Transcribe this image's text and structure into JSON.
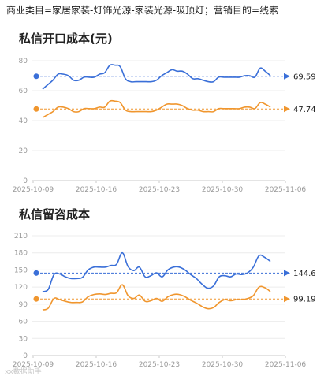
{
  "header": {
    "text": "商业类目=家居家装-灯饰光源-家装光源-吸顶灯；营销目的=线索"
  },
  "watermark": "xx数据助手",
  "chart_data": [
    {
      "type": "line",
      "title": "私信开口成本(元)",
      "ylim": [
        0,
        80
      ],
      "yticks": [
        0,
        20,
        40,
        60,
        80
      ],
      "x_tick_labels": [
        "2025-10-09",
        "2025-10-16",
        "2025-10-23",
        "2025-10-30",
        "2025-11-06"
      ],
      "grid": true,
      "series": [
        {
          "color": "#3a6fd8",
          "avg": 69.59,
          "avg_label": "69.59",
          "values": [
            61,
            64,
            67,
            71,
            71,
            70,
            67,
            67,
            69,
            69,
            69,
            71,
            72,
            77,
            77,
            76,
            68,
            66,
            66,
            66,
            66,
            66,
            67,
            70,
            72,
            74,
            73,
            73,
            71,
            68,
            68,
            67,
            66,
            66,
            69,
            69,
            69,
            69,
            69,
            70,
            70,
            69,
            75,
            73,
            70
          ]
        },
        {
          "color": "#f0962e",
          "avg": 47.74,
          "avg_label": "47.74",
          "values": [
            42,
            44,
            46,
            49,
            49,
            48,
            46,
            46,
            48,
            48,
            48,
            49,
            49,
            53,
            53,
            52,
            47,
            46,
            46,
            46,
            46,
            46,
            47,
            49,
            51,
            51,
            51,
            50,
            48,
            47,
            47,
            46,
            46,
            46,
            48,
            48,
            48,
            48,
            48,
            49,
            49,
            48,
            52,
            51,
            49
          ]
        }
      ]
    },
    {
      "type": "line",
      "title": "私信留咨成本",
      "ylim": [
        0,
        210
      ],
      "yticks": [
        0,
        30,
        60,
        90,
        120,
        150,
        180,
        210
      ],
      "x_tick_labels": [
        "2025-10-09",
        "2025-10-16",
        "2025-10-23",
        "2025-10-30",
        "2025-11-06"
      ],
      "grid": true,
      "series": [
        {
          "color": "#3a6fd8",
          "avg": 144.6,
          "avg_label": "144.6",
          "values": [
            112,
            116,
            142,
            143,
            138,
            135,
            135,
            137,
            150,
            155,
            155,
            155,
            158,
            160,
            180,
            156,
            149,
            155,
            138,
            140,
            145,
            138,
            150,
            155,
            155,
            150,
            142,
            135,
            125,
            118,
            122,
            138,
            140,
            138,
            143,
            142,
            145,
            155,
            175,
            172,
            165
          ]
        },
        {
          "color": "#f0962e",
          "avg": 99.19,
          "avg_label": "99.19",
          "values": [
            80,
            83,
            100,
            98,
            95,
            93,
            93,
            94,
            103,
            107,
            108,
            107,
            109,
            110,
            124,
            105,
            100,
            106,
            95,
            96,
            100,
            95,
            103,
            107,
            107,
            103,
            97,
            92,
            86,
            82,
            84,
            93,
            98,
            96,
            98,
            98,
            100,
            105,
            120,
            119,
            112
          ]
        }
      ]
    }
  ]
}
